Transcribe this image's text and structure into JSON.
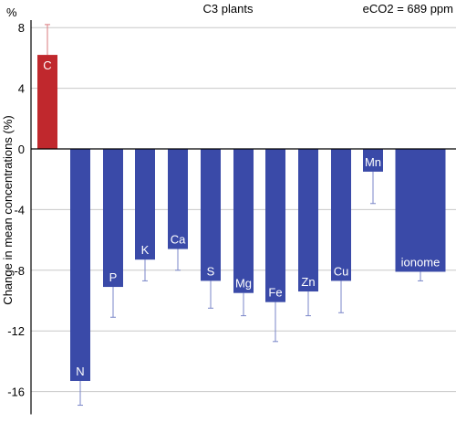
{
  "chart_data": {
    "type": "bar",
    "title": "C3 plants",
    "annotation": "eCO2 = 689 ppm",
    "ylabel": "Change in mean concentrations (%)",
    "yunit_label": "%",
    "ylim": [
      -17.5,
      8.2
    ],
    "yticks": [
      8,
      4,
      0,
      -4,
      -8,
      -12,
      -16
    ],
    "grid": true,
    "categories": [
      "C",
      "N",
      "P",
      "K",
      "Ca",
      "S",
      "Mg",
      "Fe",
      "Zn",
      "Cu",
      "Mn",
      "ionome"
    ],
    "values": [
      6.2,
      -15.3,
      -9.1,
      -7.3,
      -6.6,
      -8.7,
      -9.5,
      -10.1,
      -9.4,
      -8.7,
      -1.5,
      -8.1
    ],
    "error_ends": [
      8.2,
      -16.9,
      -11.1,
      -8.7,
      -8.0,
      -10.5,
      -11.0,
      -12.7,
      -11.0,
      -10.8,
      -3.6,
      -8.7
    ],
    "colors": {
      "positive": "#c0282d",
      "negative": "#3a4aa8",
      "error_positive": "#d97a7e",
      "error_negative": "#7a86c8",
      "grid": "#c8c8c8",
      "axis": "#000000"
    }
  }
}
